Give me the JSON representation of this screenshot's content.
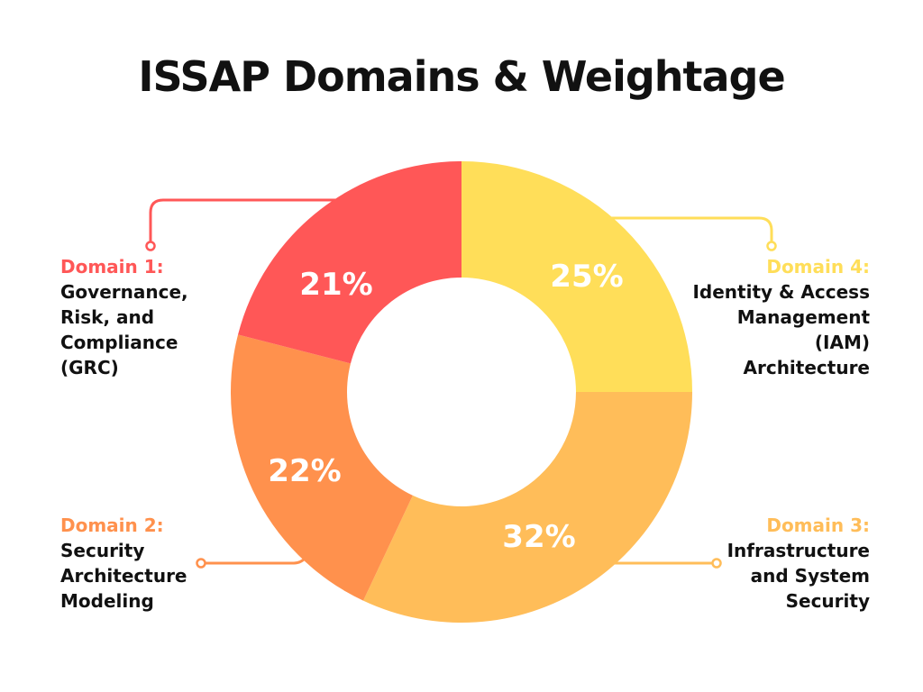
{
  "chart_data": {
    "type": "pie",
    "variant": "donut",
    "title": "ISSAP Domains & Weightage",
    "start": "top",
    "direction": "clockwise",
    "slices": [
      {
        "domain": "Domain 4:",
        "label": "Identity & Access\nManagement\n(IAM)\nArchitecture",
        "value": 25,
        "display": "25%",
        "color": "#FFDE59"
      },
      {
        "domain": "Domain 3:",
        "label": "Infrastructure\nand System\nSecurity",
        "value": 32,
        "display": "32%",
        "color": "#FFBD59"
      },
      {
        "domain": "Domain 2:",
        "label": "Security\nArchitecture\nModeling",
        "value": 22,
        "display": "22%",
        "color": "#FF914D"
      },
      {
        "domain": "Domain 1:",
        "label": "Governance,\nRisk, and\nCompliance\n(GRC)",
        "value": 21,
        "display": "21%",
        "color": "#FF5757"
      }
    ]
  }
}
